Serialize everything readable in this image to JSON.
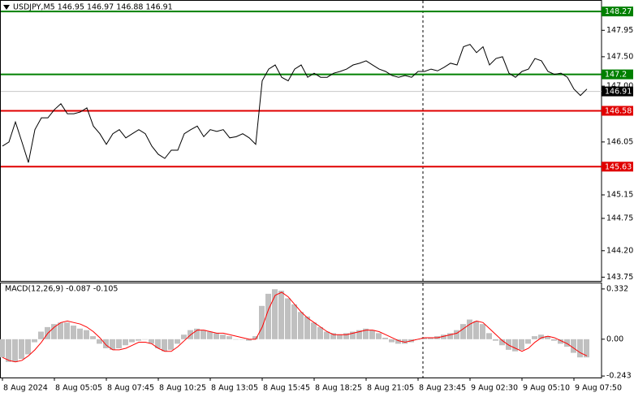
{
  "chart_data": {
    "type": "line",
    "title": "USDJPY,M5  146.95 146.97 146.88 146.91",
    "categories": [
      "8 Aug 2024",
      null,
      null,
      null,
      null,
      null,
      null,
      null,
      "8 Aug 05:05",
      null,
      null,
      null,
      null,
      null,
      null,
      null,
      "8 Aug 07:45",
      null,
      null,
      null,
      null,
      null,
      null,
      null,
      "8 Aug 10:25",
      null,
      null,
      null,
      null,
      null,
      null,
      null,
      "8 Aug 13:05",
      null,
      null,
      null,
      null,
      null,
      null,
      null,
      "8 Aug 15:45",
      null,
      null,
      null,
      null,
      null,
      null,
      null,
      "8 Aug 18:25",
      null,
      null,
      null,
      null,
      null,
      null,
      null,
      "8 Aug 21:05",
      null,
      null,
      null,
      null,
      null,
      null,
      null,
      "8 Aug 23:45",
      null,
      null,
      null,
      null,
      null,
      null,
      null,
      "9 Aug 02:30",
      null,
      null,
      null,
      null,
      null,
      null,
      null,
      "9 Aug 05:10",
      null,
      null,
      null,
      null,
      null,
      null,
      null,
      "9 Aug 07:50",
      null,
      null
    ],
    "values": [
      145.98,
      146.05,
      146.39,
      146.05,
      145.7,
      146.26,
      146.46,
      146.46,
      146.6,
      146.7,
      146.53,
      146.53,
      146.56,
      146.63,
      146.32,
      146.19,
      146.01,
      146.19,
      146.26,
      146.12,
      146.19,
      146.26,
      146.19,
      145.98,
      145.84,
      145.77,
      145.91,
      145.91,
      146.19,
      146.26,
      146.32,
      146.14,
      146.26,
      146.23,
      146.26,
      146.12,
      146.14,
      146.19,
      146.12,
      146.01,
      147.09,
      147.29,
      147.36,
      147.15,
      147.09,
      147.29,
      147.36,
      147.15,
      147.22,
      147.15,
      147.15,
      147.22,
      147.25,
      147.29,
      147.36,
      147.39,
      147.43,
      147.36,
      147.29,
      147.25,
      147.18,
      147.15,
      147.18,
      147.15,
      147.25,
      147.25,
      147.29,
      147.26,
      147.32,
      147.39,
      147.36,
      147.67,
      147.71,
      147.57,
      147.67,
      147.36,
      147.47,
      147.5,
      147.22,
      147.15,
      147.25,
      147.29,
      147.47,
      147.43,
      147.25,
      147.2,
      147.22,
      147.15,
      146.95,
      146.84,
      146.95
    ],
    "color": "#000000",
    "ylim": [
      143.7,
      148.41
    ],
    "yticks": [
      147.95,
      {
        "value": 147.5,
        "label": "147.50"
      },
      {
        "value": 147,
        "label": "147.00"
      },
      146.05,
      145.15,
      144.75,
      {
        "value": 144.2,
        "label": "144.20"
      },
      143.75
    ],
    "levels": [
      {
        "value": 148.27,
        "color": "#008000"
      },
      {
        "value": 147.2,
        "color": "#008000"
      },
      {
        "value": 146.58,
        "color": "#e00000"
      },
      {
        "value": 145.63,
        "color": "#e00000"
      }
    ],
    "last_price": 146.91,
    "macd": {
      "title": "MACD(12,26,9) -0.087 -0.105",
      "histogram_color": "#c0c0c0",
      "histogram_values": [
        -0.12,
        -0.15,
        -0.15,
        -0.13,
        -0.1,
        -0.02,
        0.05,
        0.08,
        0.1,
        0.11,
        0.11,
        0.09,
        0.07,
        0.06,
        0.02,
        -0.03,
        -0.06,
        -0.07,
        -0.06,
        -0.04,
        -0.02,
        -0.01,
        0.0,
        -0.03,
        -0.06,
        -0.08,
        -0.07,
        -0.03,
        0.03,
        0.06,
        0.07,
        0.06,
        0.05,
        0.04,
        0.03,
        0.02,
        0.0,
        0.0,
        -0.01,
        0.02,
        0.22,
        0.3,
        0.33,
        0.32,
        0.27,
        0.23,
        0.18,
        0.15,
        0.11,
        0.08,
        0.05,
        0.04,
        0.03,
        0.04,
        0.05,
        0.06,
        0.07,
        0.06,
        0.04,
        0.01,
        -0.02,
        -0.03,
        -0.03,
        -0.02,
        0.0,
        0.01,
        0.01,
        0.02,
        0.03,
        0.04,
        0.06,
        0.1,
        0.13,
        0.12,
        0.1,
        0.04,
        -0.01,
        -0.04,
        -0.07,
        -0.08,
        -0.07,
        -0.03,
        0.02,
        0.03,
        0.02,
        -0.01,
        -0.03,
        -0.05,
        -0.09,
        -0.12,
        -0.12
      ],
      "signal_color": "#ff0000",
      "signal_values": [
        -0.12,
        -0.14,
        -0.15,
        -0.14,
        -0.11,
        -0.07,
        -0.02,
        0.04,
        0.08,
        0.11,
        0.12,
        0.11,
        0.1,
        0.08,
        0.05,
        0.01,
        -0.04,
        -0.07,
        -0.07,
        -0.06,
        -0.04,
        -0.02,
        -0.02,
        -0.03,
        -0.06,
        -0.08,
        -0.08,
        -0.05,
        -0.01,
        0.03,
        0.06,
        0.06,
        0.05,
        0.04,
        0.04,
        0.03,
        0.02,
        0.01,
        0.0,
        0.0,
        0.08,
        0.2,
        0.29,
        0.31,
        0.28,
        0.23,
        0.18,
        0.14,
        0.11,
        0.08,
        0.05,
        0.03,
        0.03,
        0.03,
        0.04,
        0.05,
        0.06,
        0.06,
        0.05,
        0.03,
        0.01,
        -0.01,
        -0.02,
        -0.01,
        0.0,
        0.01,
        0.01,
        0.01,
        0.02,
        0.03,
        0.04,
        0.07,
        0.1,
        0.12,
        0.11,
        0.07,
        0.03,
        -0.01,
        -0.04,
        -0.06,
        -0.08,
        -0.06,
        -0.02,
        0.01,
        0.02,
        0.01,
        -0.01,
        -0.03,
        -0.06,
        -0.09,
        -0.11
      ],
      "ylim": [
        -0.253,
        0.369
      ],
      "yticks": [
        0.332,
        {
          "value": 0,
          "label": "0.00"
        },
        -0.243
      ]
    }
  }
}
